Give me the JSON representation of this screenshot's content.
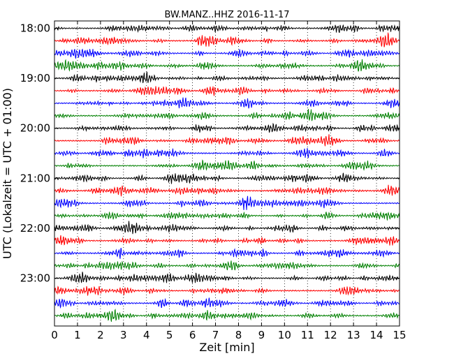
{
  "chart_data": {
    "type": "line",
    "title": "BW.MANZ..HHZ 2016-11-17",
    "xlabel": "Zeit  [min]",
    "ylabel": "UTC (Lokalzeit = UTC + 01:00)",
    "xlim": [
      0,
      15
    ],
    "x_ticks": [
      "0",
      "1",
      "2",
      "3",
      "4",
      "5",
      "6",
      "7",
      "8",
      "9",
      "10",
      "11",
      "12",
      "13",
      "14",
      "15"
    ],
    "y_ticks": [
      "18:00",
      "19:00",
      "20:00",
      "21:00",
      "22:00",
      "23:00"
    ],
    "row_start_times": [
      "18:00",
      "18:15",
      "18:30",
      "18:45",
      "19:00",
      "19:15",
      "19:30",
      "19:45",
      "20:00",
      "20:15",
      "20:30",
      "20:45",
      "21:00",
      "21:15",
      "21:30",
      "21:45",
      "22:00",
      "22:15",
      "22:30",
      "22:45",
      "23:00",
      "23:15",
      "23:30",
      "23:45"
    ],
    "minutes_per_row": 15,
    "trace_colors": [
      "#000000",
      "#ff0000",
      "#0000ff",
      "#008000"
    ],
    "grid": "vertical dotted at each minute",
    "legend": "none"
  }
}
